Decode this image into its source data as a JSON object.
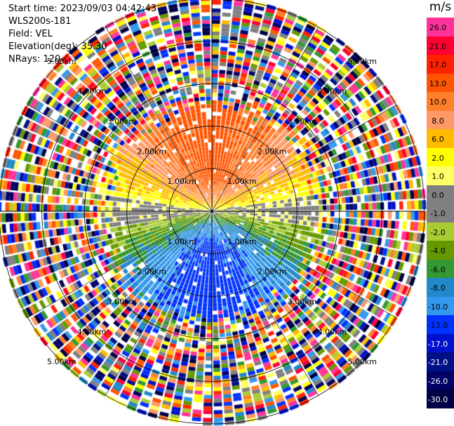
{
  "header": {
    "start_time": "Start time: 2023/09/03 04:42:43",
    "instrument": "WLS200s-181",
    "field": "Field: VEL",
    "elevation": "Elevation(deg): 35.30",
    "nrays": "NRays: 120"
  },
  "colorbar": {
    "unit": "m/s",
    "levels": [
      {
        "label": "26.0",
        "color": "#ff3399",
        "text": "#000000"
      },
      {
        "label": "21.0",
        "color": "#ff0033",
        "text": "#000000"
      },
      {
        "label": "17.0",
        "color": "#ff2200",
        "text": "#000000"
      },
      {
        "label": "13.0",
        "color": "#ff5500",
        "text": "#000000"
      },
      {
        "label": "10.0",
        "color": "#ff7f2a",
        "text": "#000000"
      },
      {
        "label": "8.0",
        "color": "#ff9966",
        "text": "#000000"
      },
      {
        "label": "6.0",
        "color": "#ffbb00",
        "text": "#000000"
      },
      {
        "label": "2.0",
        "color": "#ffff00",
        "text": "#000000"
      },
      {
        "label": "1.0",
        "color": "#ffff66",
        "text": "#000000"
      },
      {
        "label": "0.0",
        "color": "#808080",
        "text": "#000000"
      },
      {
        "label": "-1.0",
        "color": "#808080",
        "text": "#000000"
      },
      {
        "label": "-2.0",
        "color": "#aacc33",
        "text": "#000000"
      },
      {
        "label": "-4.0",
        "color": "#669900",
        "text": "#000000"
      },
      {
        "label": "-6.0",
        "color": "#339933",
        "text": "#000000"
      },
      {
        "label": "-8.0",
        "color": "#2288cc",
        "text": "#000000"
      },
      {
        "label": "-10.0",
        "color": "#3399ee",
        "text": "#000000"
      },
      {
        "label": "-13.0",
        "color": "#0033ff",
        "text": "#000000"
      },
      {
        "label": "-17.0",
        "color": "#0011cc",
        "text": "#ffffff"
      },
      {
        "label": "-21.0",
        "color": "#001188",
        "text": "#ffffff"
      },
      {
        "label": "-26.0",
        "color": "#000066",
        "text": "#ffffff"
      },
      {
        "label": "-30.0",
        "color": "#000044",
        "text": "#ffffff"
      }
    ]
  },
  "chart_data": {
    "type": "heatmap",
    "subtype": "polar-ppi",
    "field": "VEL",
    "units": "m/s",
    "n_rays": 120,
    "range_rings_km": [
      1.0,
      2.0,
      3.0,
      4.0,
      5.0
    ],
    "ring_labels": [
      "1.00km",
      "2.00km",
      "3.00km",
      "4.00km",
      "5.00km"
    ],
    "max_range_km": 5.0,
    "color_scale": [
      -30.0,
      -26.0,
      -21.0,
      -17.0,
      -13.0,
      -10.0,
      -8.0,
      -6.0,
      -4.0,
      -2.0,
      -1.0,
      0.0,
      1.0,
      2.0,
      6.0,
      8.0,
      10.0,
      13.0,
      17.0,
      21.0,
      26.0
    ],
    "pattern": {
      "north_sector": "positive 6 to 13 m/s (orange/red)",
      "south_sector": "negative -10 to -17 m/s (blue)",
      "east_west_band": "near 0 m/s (yellow/grey/green)",
      "beyond_radius_km": 2.5,
      "beyond_note": "noisy, all colors"
    }
  }
}
